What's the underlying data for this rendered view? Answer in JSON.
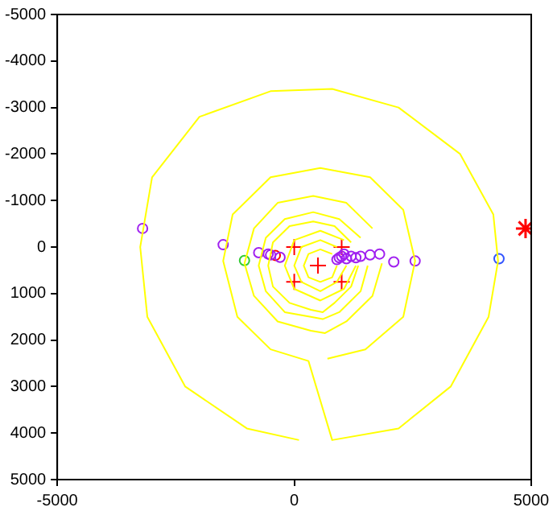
{
  "chart_data": {
    "type": "scatter",
    "xlim": [
      -5000,
      5000
    ],
    "ylim": [
      5000,
      -5000
    ],
    "xticks": [
      -5000,
      0,
      5000
    ],
    "yticks": [
      -5000,
      -4000,
      -3000,
      -2000,
      -1000,
      0,
      1000,
      2000,
      3000,
      4000,
      5000
    ],
    "grid": false,
    "legend": false,
    "series": [
      {
        "type": "line",
        "color": "#ffff00",
        "marker": "none",
        "x": [
          100,
          -1000,
          -2300,
          -3100,
          -3250,
          -3000,
          -2000,
          -500,
          800,
          2200,
          3500,
          4200,
          4300,
          4100,
          3300,
          2200,
          800,
          300,
          -500,
          -1200,
          -1500,
          -1300,
          -500,
          550,
          1600,
          2300,
          2550,
          2300,
          1500,
          700
        ],
        "values": [
          4150,
          3900,
          3000,
          1500,
          0,
          -1500,
          -2800,
          -3350,
          -3400,
          -3000,
          -2000,
          -700,
          300,
          1500,
          3000,
          3900,
          4150,
          2450,
          2200,
          1500,
          300,
          -700,
          -1500,
          -1700,
          -1500,
          -800,
          300,
          1500,
          2200,
          2400
        ]
      },
      {
        "type": "line",
        "color": "#ffff00",
        "marker": "none",
        "x": [
          1850,
          1650,
          1100,
          650,
          350,
          -350,
          -850,
          -1050,
          -850,
          -350,
          400,
          1100,
          1650
        ],
        "values": [
          350,
          1050,
          1600,
          1850,
          1800,
          1600,
          1050,
          350,
          -400,
          -950,
          -1100,
          -950,
          -400
        ]
      },
      {
        "type": "line",
        "color": "#ffff00",
        "marker": "none",
        "x": [
          1550,
          1400,
          950,
          600,
          350,
          -200,
          -600,
          -750,
          -600,
          -200,
          400,
          950,
          1400
        ],
        "values": [
          400,
          950,
          1400,
          1550,
          1500,
          1400,
          950,
          400,
          -200,
          -600,
          -750,
          -600,
          -200
        ]
      },
      {
        "type": "line",
        "color": "#ffff00",
        "marker": "none",
        "x": [
          1350,
          1200,
          850,
          600,
          350,
          -100,
          -450,
          -550,
          -450,
          -100,
          400,
          850,
          1200
        ],
        "values": [
          400,
          850,
          1200,
          1400,
          1350,
          1200,
          850,
          400,
          -100,
          -450,
          -550,
          -450,
          -100
        ]
      },
      {
        "type": "line",
        "color": "#ffff00",
        "marker": "none",
        "x": [
          1300,
          1050,
          550,
          0,
          -200,
          0,
          550,
          1050
        ],
        "values": [
          400,
          900,
          1150,
          900,
          400,
          -150,
          -350,
          -150
        ]
      },
      {
        "type": "line",
        "color": "#ffff00",
        "marker": "none",
        "x": [
          1100,
          900,
          550,
          150,
          0,
          150,
          550,
          900
        ],
        "values": [
          400,
          750,
          950,
          750,
          400,
          0,
          -150,
          0
        ]
      },
      {
        "type": "line",
        "color": "#ffff00",
        "marker": "none",
        "x": [
          900,
          800,
          550,
          300,
          200,
          300,
          550,
          800
        ],
        "values": [
          400,
          650,
          750,
          650,
          400,
          150,
          50,
          150
        ]
      },
      {
        "color": "#a020f0",
        "marker": "circle",
        "x": [
          -3200,
          -1500,
          -750,
          -550,
          -500,
          -300,
          900,
          950,
          1000,
          1050,
          1100,
          1200,
          1300,
          1400,
          1600,
          1800,
          2100,
          2550
        ],
        "values": [
          -400,
          -50,
          120,
          150,
          170,
          220,
          270,
          230,
          200,
          150,
          250,
          200,
          230,
          200,
          170,
          150,
          320,
          300
        ]
      },
      {
        "color": "#ff0000",
        "marker": "cross",
        "x": [
          0,
          1000,
          0,
          1000,
          500
        ],
        "values": [
          0,
          0,
          750,
          750,
          400
        ]
      },
      {
        "color": "#ff0000",
        "marker": "circle",
        "x": [
          -400
        ],
        "values": [
          180
        ]
      },
      {
        "color": "#33cc33",
        "marker": "circle",
        "x": [
          -1050
        ],
        "values": [
          290
        ]
      },
      {
        "color": "#3355ff",
        "marker": "circle",
        "x": [
          4320
        ],
        "values": [
          250
        ]
      },
      {
        "color": "#ff0000",
        "x": [
          4880
        ],
        "values": [
          -400
        ]
      }
    ]
  }
}
